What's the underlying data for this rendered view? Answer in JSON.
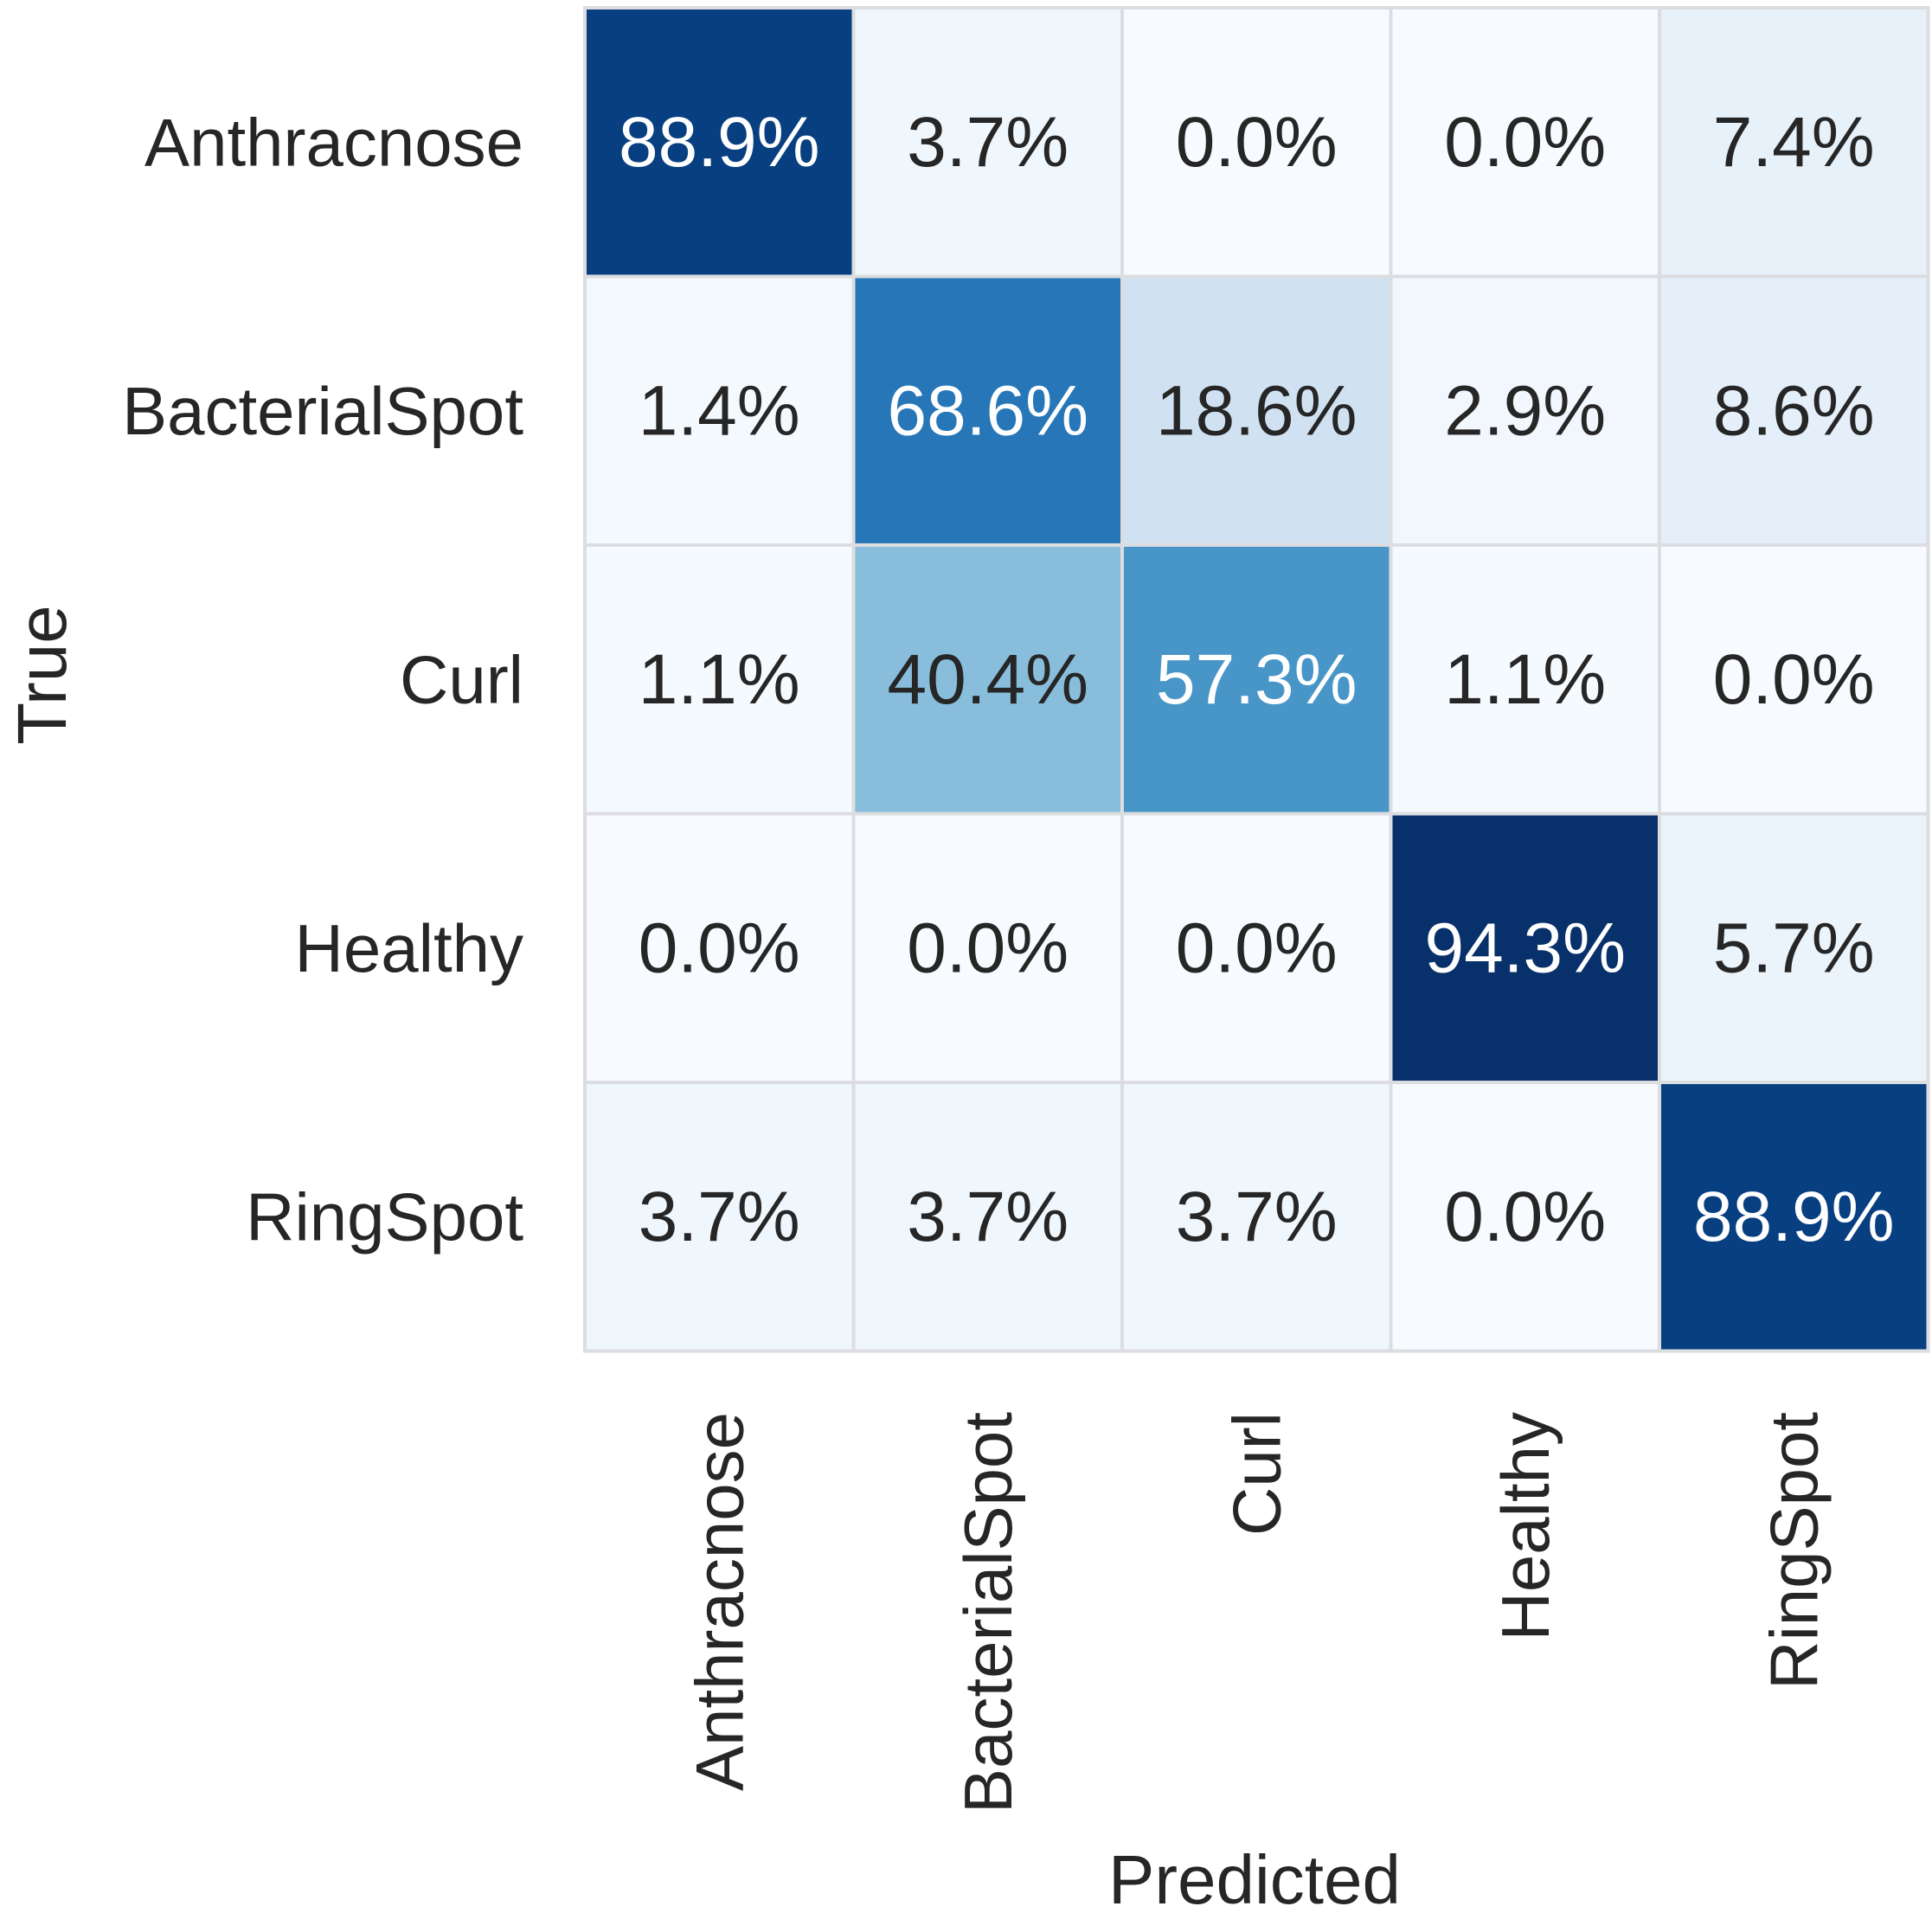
{
  "chart_data": {
    "type": "heatmap",
    "title": "",
    "xlabel": "Predicted",
    "ylabel": "True",
    "x_categories": [
      "Anthracnose",
      "BacterialSpot",
      "Curl",
      "Healthy",
      "RingSpot"
    ],
    "y_categories": [
      "Anthracnose",
      "BacterialSpot",
      "Curl",
      "Healthy",
      "RingSpot"
    ],
    "values": [
      [
        88.9,
        3.7,
        0.0,
        0.0,
        7.4
      ],
      [
        1.4,
        68.6,
        18.6,
        2.9,
        8.6
      ],
      [
        1.1,
        40.4,
        57.3,
        1.1,
        0.0
      ],
      [
        0.0,
        0.0,
        0.0,
        94.3,
        5.7
      ],
      [
        3.7,
        3.7,
        3.7,
        0.0,
        88.9
      ]
    ],
    "value_format": "percent_1dp",
    "colormap": "Blues",
    "vmin": 0,
    "vmax": 94.3,
    "colorbar": false,
    "cell_border_color": "#dcdde1",
    "text_color_dark": "#262626",
    "text_color_light": "#ffffff"
  }
}
